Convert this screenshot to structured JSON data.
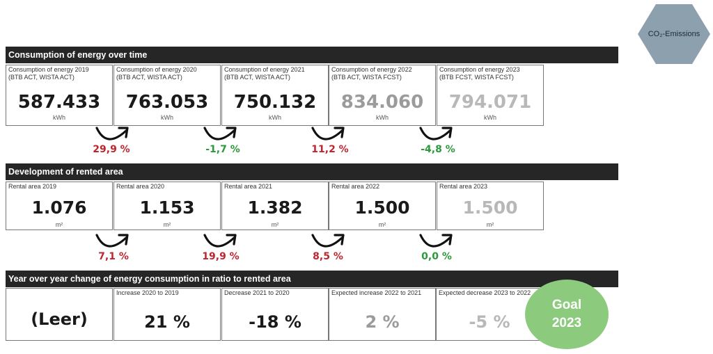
{
  "co2_button": {
    "label": "CO₂-Emissions"
  },
  "section1": {
    "title": "Consumption of energy over time",
    "cards": [
      {
        "label": "Consumption of energy 2019\n(BTB ACT, WISTA ACT)",
        "value": "587.433",
        "unit": "kWh"
      },
      {
        "label": "Consumption of energy 2020\n(BTB ACT, WISTA ACT)",
        "value": "763.053",
        "unit": "kWh"
      },
      {
        "label": "Consumption of energy 2021\n(BTB ACT, WISTA ACT)",
        "value": "750.132",
        "unit": "kWh"
      },
      {
        "label": "Consumption of energy 2022\n(BTB ACT, WISTA FCST)",
        "value": "834.060",
        "unit": "kWh"
      },
      {
        "label": "Consumption of energy 2023\n(BTB FCST, WISTA FCST)",
        "value": "794.071",
        "unit": "kWh"
      }
    ],
    "changes": [
      "29,9 %",
      "-1,7 %",
      "11,2 %",
      "-4,8 %"
    ]
  },
  "section2": {
    "title": "Development of rented area",
    "cards": [
      {
        "label": "Rental area 2019",
        "value": "1.076",
        "unit": "m²"
      },
      {
        "label": "Rental area 2020",
        "value": "1.153",
        "unit": "m²"
      },
      {
        "label": "Rental area 2021",
        "value": "1.382",
        "unit": "m²"
      },
      {
        "label": "Rental area 2022",
        "value": "1.500",
        "unit": "m²"
      },
      {
        "label": "Rental area 2023",
        "value": "1.500",
        "unit": "m²"
      }
    ],
    "changes": [
      "7,1 %",
      "19,9 %",
      "8,5 %",
      "0,0 %"
    ]
  },
  "section3": {
    "title": "Year over year change of energy consumption in ratio to rented area",
    "cards": [
      {
        "label": "",
        "value": "(Leer)"
      },
      {
        "label": "Increase 2020 to 2019",
        "value": "21 %"
      },
      {
        "label": "Decrease 2021 to 2020",
        "value": "-18 %"
      },
      {
        "label": "Expected increase 2022 to 2021",
        "value": "2 %"
      },
      {
        "label": "Expected decrease 2023 to 2022",
        "value": "-5 %"
      }
    ]
  },
  "goal": {
    "line1": "Goal",
    "line2": "2023"
  },
  "colors": {
    "positive_change": "#c0242e",
    "negative_change": "#2a9a3a",
    "goal_badge": "#8ccb7e",
    "header_bg": "#262626"
  }
}
